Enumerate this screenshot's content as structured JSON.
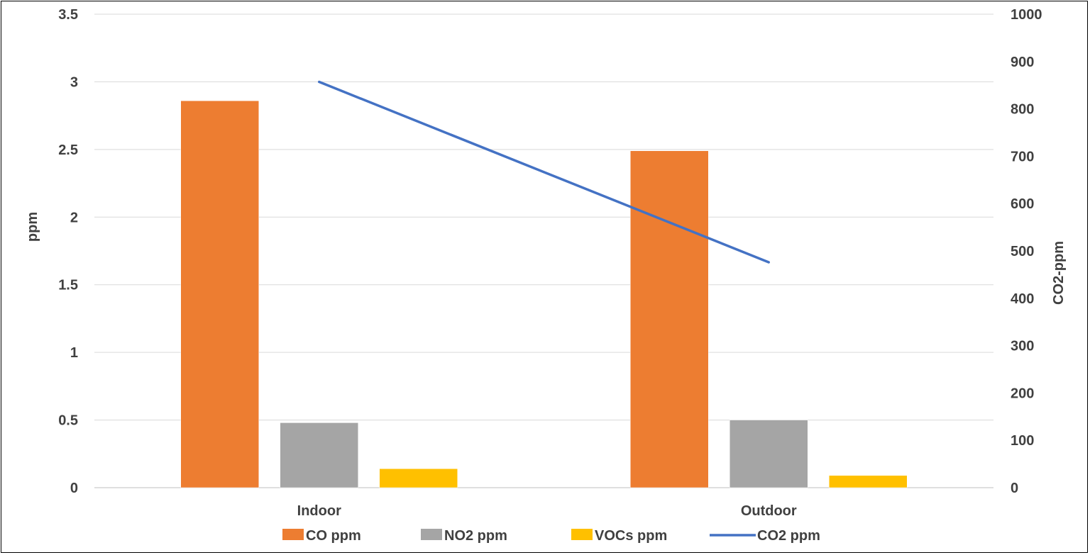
{
  "chart_data": {
    "type": "bar",
    "categories": [
      "Indoor",
      "Outdoor"
    ],
    "series": [
      {
        "name": "CO ppm",
        "type": "bar",
        "axis": "left",
        "color": "#ED7D31",
        "values": [
          2.86,
          2.49
        ]
      },
      {
        "name": "NO2 ppm",
        "type": "bar",
        "axis": "left",
        "color": "#A5A5A5",
        "values": [
          0.48,
          0.5
        ]
      },
      {
        "name": "VOCs ppm",
        "type": "bar",
        "axis": "left",
        "color": "#FFC000",
        "values": [
          0.14,
          0.09
        ]
      },
      {
        "name": "CO2 ppm",
        "type": "line",
        "axis": "right",
        "color": "#4472C4",
        "values": [
          857,
          476
        ]
      }
    ],
    "ylabel": "ppm",
    "ylabel_right": "CO2-ppm",
    "ylim": [
      0,
      3.5
    ],
    "ylim_right": [
      0,
      1000
    ],
    "yticks": [
      "0",
      "0.5",
      "1",
      "1.5",
      "2",
      "2.5",
      "3",
      "3.5"
    ],
    "yticks_right": [
      "0",
      "100",
      "200",
      "300",
      "400",
      "500",
      "600",
      "700",
      "800",
      "900",
      "1000"
    ],
    "grid": true,
    "legend_position": "bottom"
  }
}
